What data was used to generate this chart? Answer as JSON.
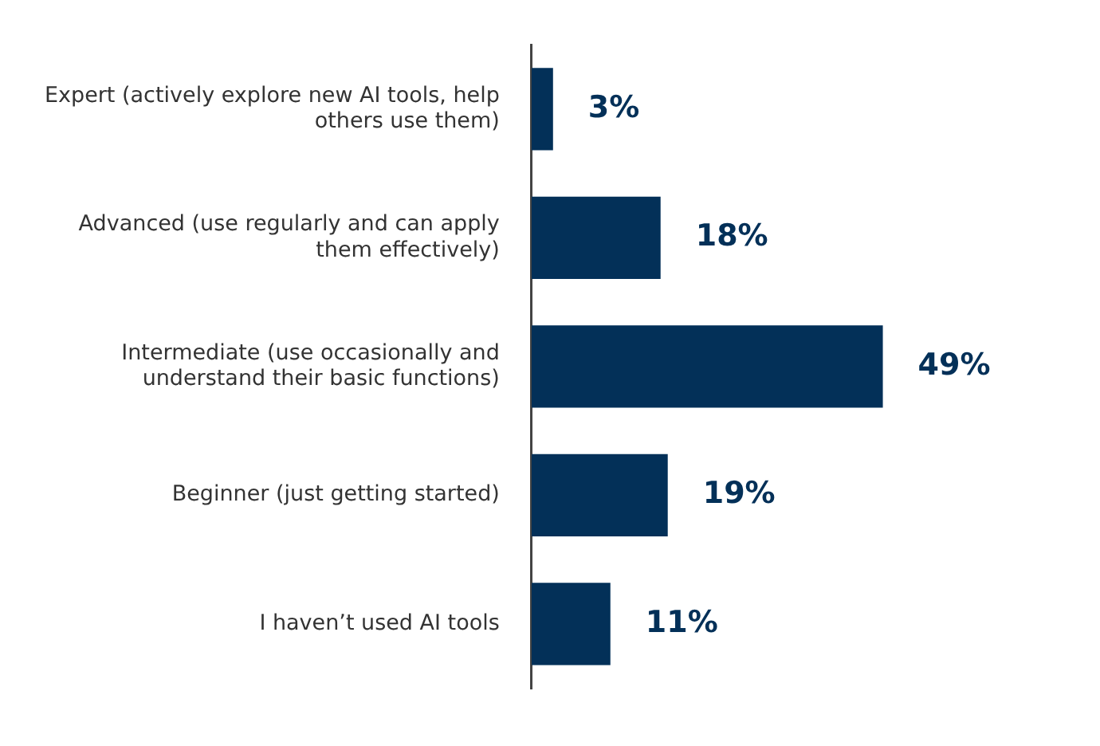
{
  "chart_data": {
    "type": "bar",
    "orientation": "horizontal",
    "categories": [
      "Expert (actively explore new AI tools, help others use them)",
      "Advanced (use regularly and can apply them effectively)",
      "Intermediate (use occasionally and understand their basic functions)",
      "Beginner (just getting started)",
      "I haven’t used AI tools"
    ],
    "values": [
      3,
      18,
      49,
      19,
      11
    ],
    "value_labels": [
      "3%",
      "18%",
      "49%",
      "19%",
      "11%"
    ],
    "color": "#033058",
    "grid": false,
    "legend": false
  }
}
